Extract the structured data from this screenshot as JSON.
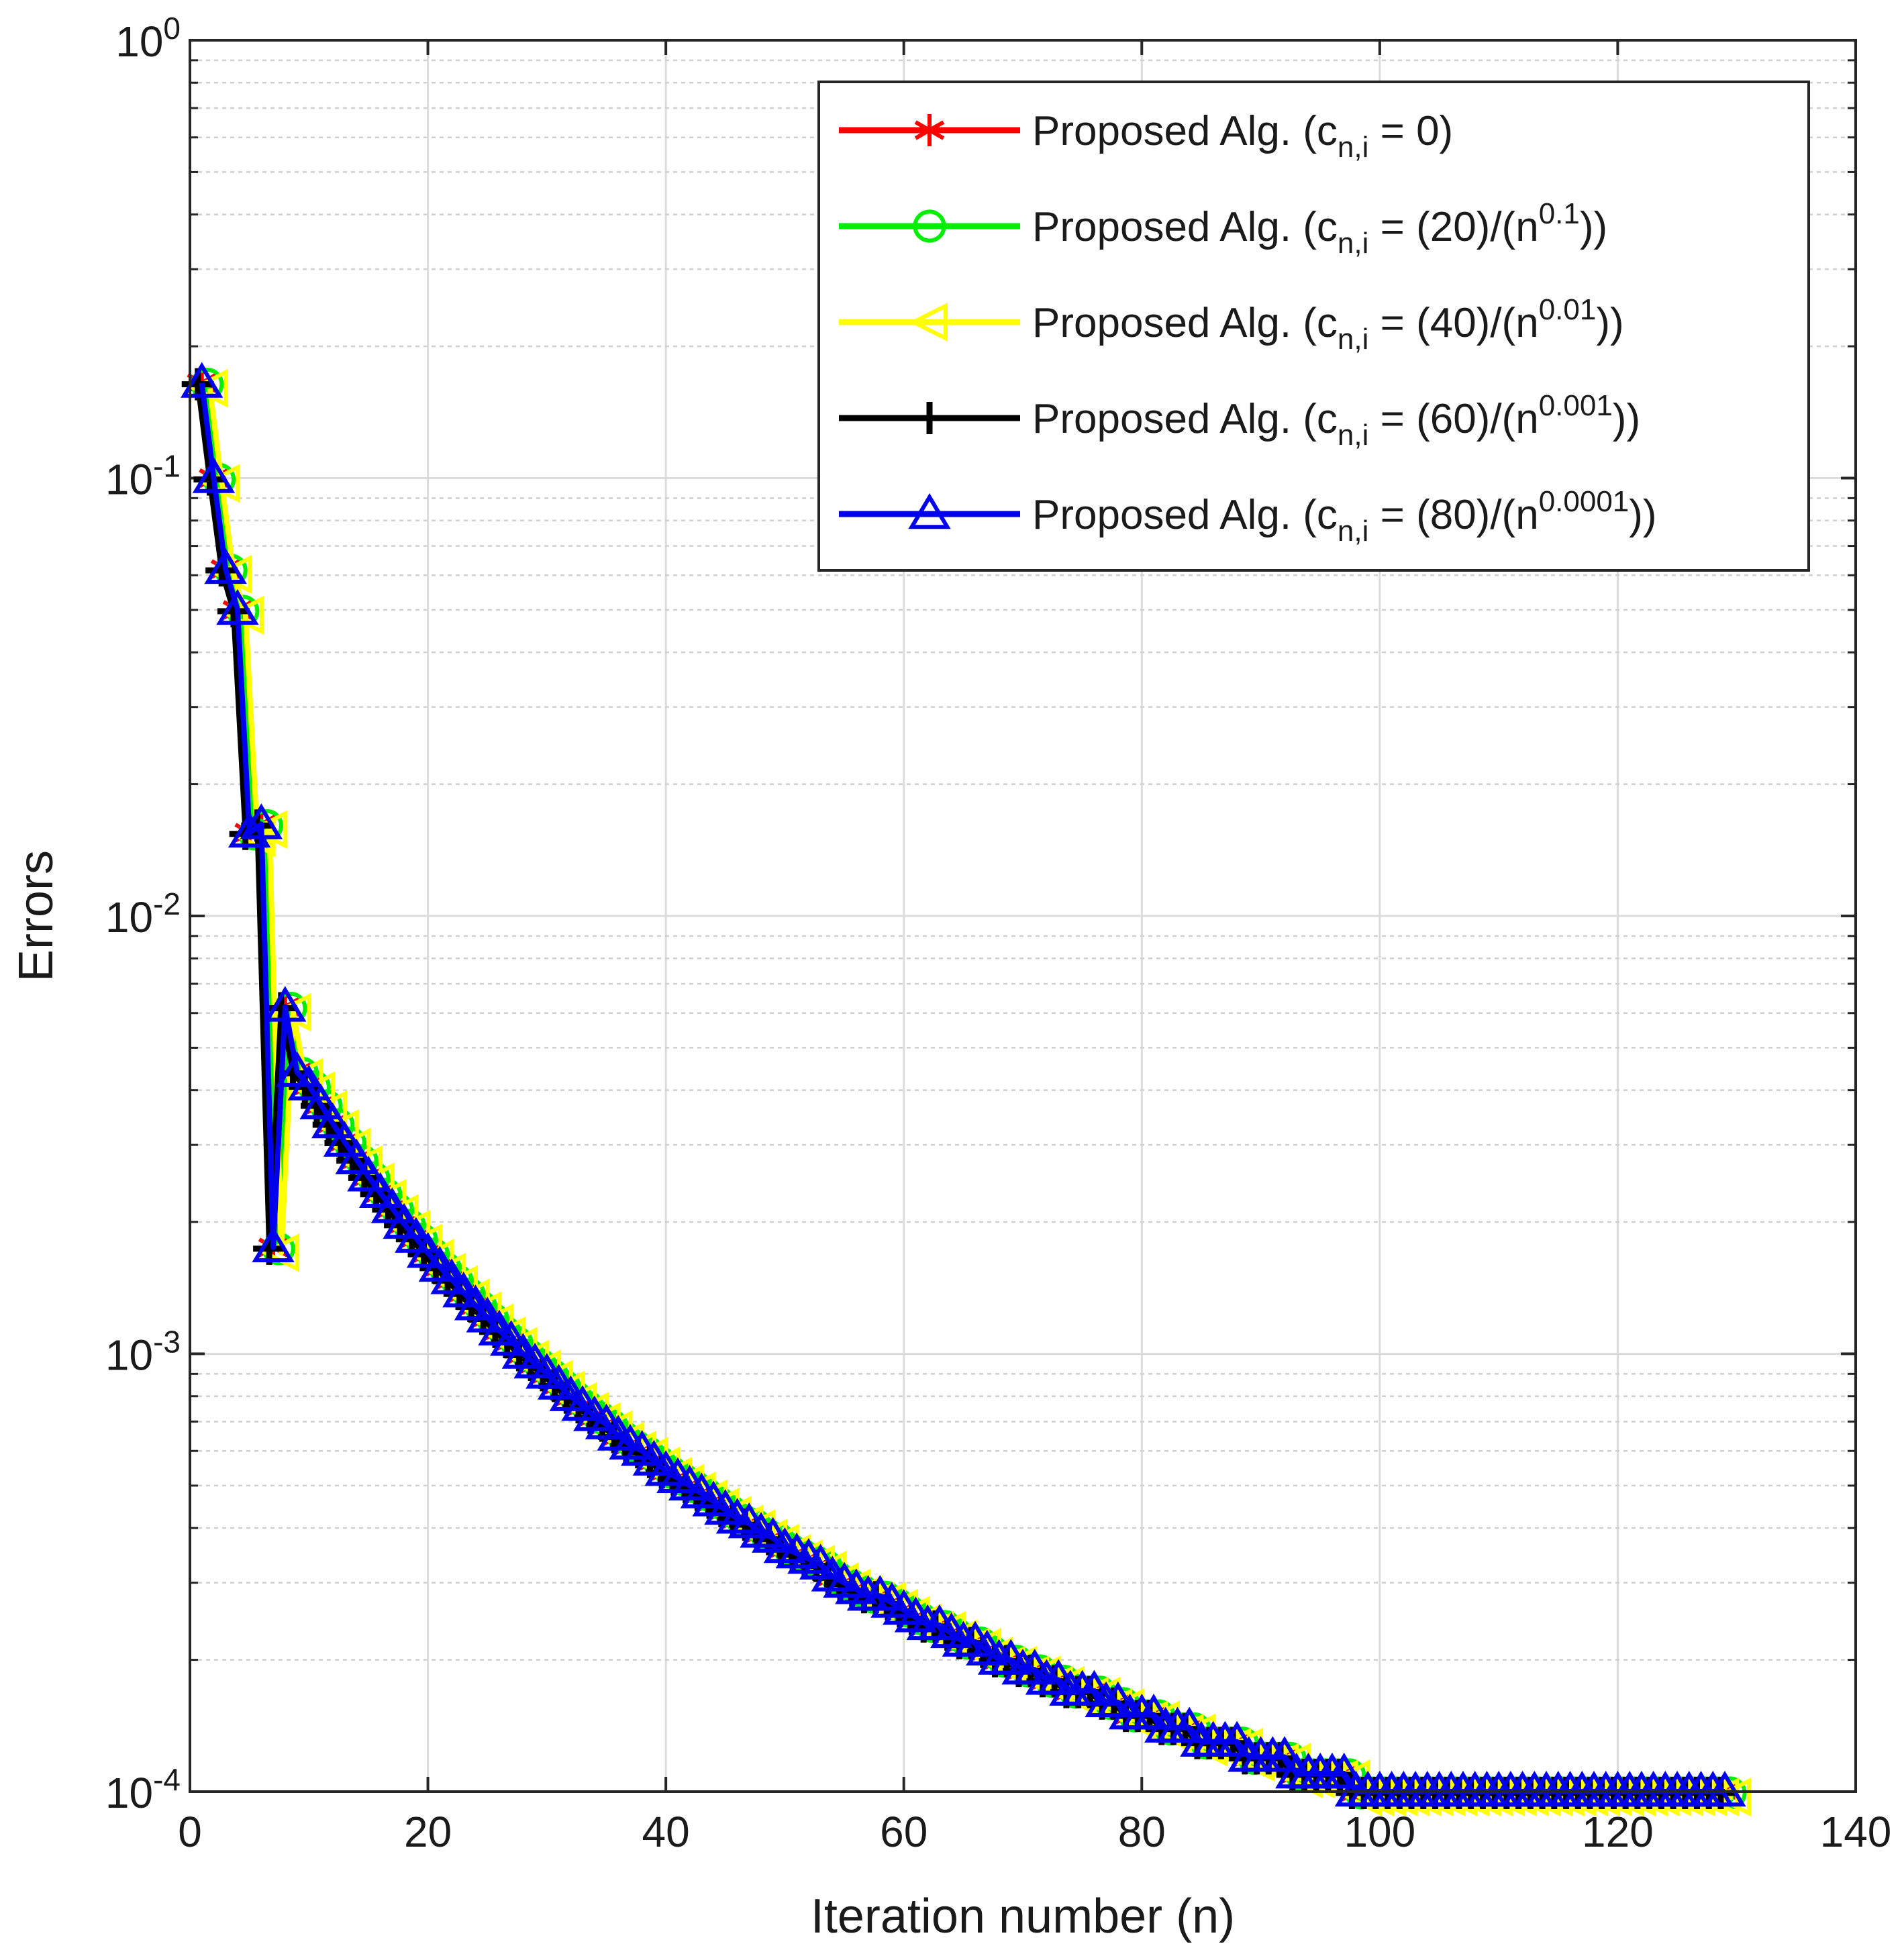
{
  "chart_data": {
    "type": "line",
    "title": "",
    "xlabel": "Iteration number (n)",
    "ylabel": "Errors",
    "xlim": [
      0,
      140
    ],
    "ylim": [
      0.0001,
      1
    ],
    "yscale": "log",
    "grid": true,
    "legend_position": "top-right",
    "x_ticks": [
      0,
      20,
      40,
      60,
      80,
      100,
      120,
      140
    ],
    "y_ticks": [
      {
        "value": 1,
        "base": "10",
        "exp": "0"
      },
      {
        "value": 0.1,
        "base": "10",
        "exp": "-1"
      },
      {
        "value": 0.01,
        "base": "10",
        "exp": "-2"
      },
      {
        "value": 0.001,
        "base": "10",
        "exp": "-3"
      },
      {
        "value": 0.0001,
        "base": "10",
        "exp": "-4"
      }
    ],
    "x": [
      1,
      2,
      3,
      4,
      5,
      6,
      7,
      8,
      9,
      10,
      11,
      12,
      13,
      14,
      15,
      16,
      17,
      18,
      19,
      20,
      21,
      22,
      23,
      24,
      25,
      26,
      27,
      28,
      29,
      30,
      31,
      32,
      33,
      34,
      35,
      36,
      37,
      38,
      39,
      40,
      41,
      42,
      43,
      44,
      45,
      46,
      47,
      48,
      49,
      50,
      51,
      52,
      53,
      54,
      55,
      56,
      57,
      58,
      59,
      60,
      61,
      62,
      63,
      64,
      65,
      66,
      67,
      68,
      69,
      70,
      71,
      72,
      73,
      74,
      75,
      76,
      77,
      78,
      79,
      80,
      81,
      82,
      83,
      84,
      85,
      86,
      87,
      88,
      89,
      90,
      91,
      92,
      93,
      94,
      95,
      96,
      97,
      98,
      99,
      100,
      101,
      102,
      103,
      104,
      105,
      106,
      107,
      108,
      109,
      110,
      111,
      112,
      113,
      114,
      115,
      116,
      117,
      118,
      119,
      120,
      121,
      122,
      123,
      124,
      125,
      126,
      127,
      128,
      129
    ],
    "series": [
      {
        "name": "Proposed Alg. (c_{n,i} = 0)",
        "label_main": "Proposed Alg. (c",
        "label_sub": "n,i",
        "label_rest": " = 0)",
        "label_sup": "",
        "label_end": "",
        "color": "#ff0000",
        "marker": "asterisk",
        "y": [
          0.165,
          0.1,
          0.062,
          0.05,
          0.0155,
          0.0162,
          0.00175,
          0.0062,
          0.0044,
          0.0041,
          0.00371,
          0.00336,
          0.00305,
          0.00278,
          0.00254,
          0.00233,
          0.00215,
          0.00198,
          0.00184,
          0.0017,
          0.00158,
          0.00148,
          0.00138,
          0.00129,
          0.00121,
          0.00113,
          0.00107,
          0.001,
          0.00095,
          0.0009,
          0.00085,
          0.0008,
          0.00076,
          0.00072,
          0.00069,
          0.00065,
          0.00062,
          0.0006,
          0.00057,
          0.00054,
          0.00052,
          0.0005,
          0.00048,
          0.00046,
          0.00044,
          0.00042,
          0.00041,
          0.00039,
          0.00038,
          0.00036,
          0.00035,
          0.00034,
          0.00033,
          0.00031,
          0.0003,
          0.00029,
          0.00028,
          0.00028,
          0.00027,
          0.00026,
          0.00025,
          0.00024,
          0.00024,
          0.00023,
          0.00022,
          0.00022,
          0.00021,
          0.0002,
          0.0002,
          0.00019,
          0.00019,
          0.00018,
          0.00018,
          0.00017,
          0.00017,
          0.00017,
          0.00016,
          0.00016,
          0.00015,
          0.00015,
          0.00015,
          0.00014,
          0.00014,
          0.00014,
          0.00013,
          0.00013,
          0.00013,
          0.00013,
          0.00012,
          0.00012,
          0.00012,
          0.00012,
          0.00011,
          0.00011,
          0.00011,
          0.00011,
          0.00011,
          0.0001,
          0.0001,
          0.0001,
          0.0001,
          0.0001,
          0.0001,
          0.0001,
          0.0001,
          0.0001,
          0.0001,
          0.0001,
          0.0001,
          0.0001,
          0.0001,
          0.0001,
          0.0001,
          0.0001,
          0.0001,
          0.0001,
          0.0001,
          0.0001,
          0.0001,
          0.0001,
          0.0001,
          0.0001,
          0.0001,
          0.0001,
          0.0001,
          0.0001,
          0.0001,
          0.0001,
          0.0001
        ]
      },
      {
        "name": "Proposed Alg. (c_{n,i} = (20)/(n^{0.1}))",
        "label_main": "Proposed  Alg. (c",
        "label_sub": "n,i",
        "label_rest": " = (20)/(n",
        "label_sup": "0.1",
        "label_end": "))",
        "color": "#00ee00",
        "marker": "circle",
        "y": [
          0.165,
          0.1,
          0.062,
          0.05,
          0.0155,
          0.0162,
          0.00175,
          0.0062,
          0.0044,
          0.0041,
          0.00371,
          0.00336,
          0.00305,
          0.00278,
          0.00254,
          0.00233,
          0.00215,
          0.00198,
          0.00184,
          0.0017,
          0.00158,
          0.00148,
          0.00138,
          0.00129,
          0.00121,
          0.00113,
          0.00107,
          0.001,
          0.00095,
          0.0009,
          0.00085,
          0.0008,
          0.00076,
          0.00072,
          0.00069,
          0.00065,
          0.00062,
          0.0006,
          0.00057,
          0.00054,
          0.00052,
          0.0005,
          0.00048,
          0.00046,
          0.00044,
          0.00042,
          0.00041,
          0.00039,
          0.00038,
          0.00036,
          0.00035,
          0.00034,
          0.00033,
          0.00031,
          0.0003,
          0.00029,
          0.00028,
          0.00028,
          0.00027,
          0.00026,
          0.00025,
          0.00024,
          0.00024,
          0.00023,
          0.00022,
          0.00022,
          0.00021,
          0.0002,
          0.0002,
          0.00019,
          0.00019,
          0.00018,
          0.00018,
          0.00017,
          0.00017,
          0.00017,
          0.00016,
          0.00016,
          0.00015,
          0.00015,
          0.00015,
          0.00014,
          0.00014,
          0.00014,
          0.00013,
          0.00013,
          0.00013,
          0.00013,
          0.00012,
          0.00012,
          0.00012,
          0.00012,
          0.00011,
          0.00011,
          0.00011,
          0.00011,
          0.00011,
          0.0001,
          0.0001,
          0.0001,
          0.0001,
          0.0001,
          0.0001,
          0.0001,
          0.0001,
          0.0001,
          0.0001,
          0.0001,
          0.0001,
          0.0001,
          0.0001,
          0.0001,
          0.0001,
          0.0001,
          0.0001,
          0.0001,
          0.0001,
          0.0001,
          0.0001,
          0.0001,
          0.0001,
          0.0001,
          0.0001,
          0.0001,
          0.0001,
          0.0001,
          0.0001,
          0.0001,
          0.0001
        ]
      },
      {
        "name": "Proposed Alg. (c_{n,i} = (40)/(n^{0.01}))",
        "label_main": "Proposed  Alg. (c",
        "label_sub": "n,i",
        "label_rest": " = (40)/(n",
        "label_sup": "0.01",
        "label_end": "))",
        "color": "#ffff00",
        "marker": "triangle-left",
        "y": [
          0.165,
          0.1,
          0.062,
          0.05,
          0.0155,
          0.0162,
          0.00175,
          0.0062,
          0.0044,
          0.0041,
          0.00371,
          0.00336,
          0.00305,
          0.00278,
          0.00254,
          0.00233,
          0.00215,
          0.00198,
          0.00184,
          0.0017,
          0.00158,
          0.00148,
          0.00138,
          0.00129,
          0.00121,
          0.00113,
          0.00107,
          0.001,
          0.00095,
          0.0009,
          0.00085,
          0.0008,
          0.00076,
          0.00072,
          0.00069,
          0.00065,
          0.00062,
          0.0006,
          0.00057,
          0.00054,
          0.00052,
          0.0005,
          0.00048,
          0.00046,
          0.00044,
          0.00042,
          0.00041,
          0.00039,
          0.00038,
          0.00036,
          0.00035,
          0.00034,
          0.00033,
          0.00031,
          0.0003,
          0.00029,
          0.00028,
          0.00028,
          0.00027,
          0.00026,
          0.00025,
          0.00024,
          0.00024,
          0.00023,
          0.00022,
          0.00022,
          0.00021,
          0.0002,
          0.0002,
          0.00019,
          0.00019,
          0.00018,
          0.00018,
          0.00017,
          0.00017,
          0.00017,
          0.00016,
          0.00016,
          0.00015,
          0.00015,
          0.00015,
          0.00014,
          0.00014,
          0.00014,
          0.00013,
          0.00013,
          0.00013,
          0.00013,
          0.00012,
          0.00012,
          0.00012,
          0.00012,
          0.00011,
          0.00011,
          0.00011,
          0.00011,
          0.00011,
          0.0001,
          0.0001,
          0.0001,
          0.0001,
          0.0001,
          0.0001,
          0.0001,
          0.0001,
          0.0001,
          0.0001,
          0.0001,
          0.0001,
          0.0001,
          0.0001,
          0.0001,
          0.0001,
          0.0001,
          0.0001,
          0.0001,
          0.0001,
          0.0001,
          0.0001,
          0.0001,
          0.0001,
          0.0001,
          0.0001,
          0.0001,
          0.0001,
          0.0001,
          0.0001,
          0.0001,
          0.0001
        ]
      },
      {
        "name": "Proposed Alg. (c_{n,i} = (60)/(n^{0.001}))",
        "label_main": "Proposed  Alg. (c",
        "label_sub": "n,i",
        "label_rest": " = (60)/(n",
        "label_sup": "0.001",
        "label_end": "))",
        "color": "#000000",
        "marker": "plus",
        "y": [
          0.165,
          0.1,
          0.062,
          0.05,
          0.0155,
          0.0162,
          0.00175,
          0.0062,
          0.0044,
          0.0041,
          0.00371,
          0.00336,
          0.00305,
          0.00278,
          0.00254,
          0.00233,
          0.00215,
          0.00198,
          0.00184,
          0.0017,
          0.00158,
          0.00148,
          0.00138,
          0.00129,
          0.00121,
          0.00113,
          0.00107,
          0.001,
          0.00095,
          0.0009,
          0.00085,
          0.0008,
          0.00076,
          0.00072,
          0.00069,
          0.00065,
          0.00062,
          0.0006,
          0.00057,
          0.00054,
          0.00052,
          0.0005,
          0.00048,
          0.00046,
          0.00044,
          0.00042,
          0.00041,
          0.00039,
          0.00038,
          0.00036,
          0.00035,
          0.00034,
          0.00033,
          0.00031,
          0.0003,
          0.00029,
          0.00028,
          0.00028,
          0.00027,
          0.00026,
          0.00025,
          0.00024,
          0.00024,
          0.00023,
          0.00022,
          0.00022,
          0.00021,
          0.0002,
          0.0002,
          0.00019,
          0.00019,
          0.00018,
          0.00018,
          0.00017,
          0.00017,
          0.00017,
          0.00016,
          0.00016,
          0.00015,
          0.00015,
          0.00015,
          0.00014,
          0.00014,
          0.00014,
          0.00013,
          0.00013,
          0.00013,
          0.00013,
          0.00012,
          0.00012,
          0.00012,
          0.00012,
          0.00011,
          0.00011,
          0.00011,
          0.00011,
          0.00011,
          0.0001,
          0.0001,
          0.0001,
          0.0001,
          0.0001,
          0.0001,
          0.0001,
          0.0001,
          0.0001,
          0.0001,
          0.0001,
          0.0001,
          0.0001,
          0.0001,
          0.0001,
          0.0001,
          0.0001,
          0.0001,
          0.0001,
          0.0001,
          0.0001,
          0.0001,
          0.0001,
          0.0001,
          0.0001,
          0.0001,
          0.0001,
          0.0001,
          0.0001,
          0.0001,
          0.0001,
          0.0001
        ]
      },
      {
        "name": "Proposed Alg. (c_{n,i} = (80)/(n^{0.0001}))",
        "label_main": "Proposed  Alg. (c",
        "label_sub": "n,i",
        "label_rest": " = (80)/(n",
        "label_sup": "0.0001",
        "label_end": "))",
        "color": "#0000ee",
        "marker": "triangle-up",
        "y": [
          0.165,
          0.1,
          0.062,
          0.05,
          0.0155,
          0.0162,
          0.00175,
          0.0062,
          0.0044,
          0.0041,
          0.00371,
          0.00336,
          0.00305,
          0.00278,
          0.00254,
          0.00233,
          0.00215,
          0.00198,
          0.00184,
          0.0017,
          0.00158,
          0.00148,
          0.00138,
          0.00129,
          0.00121,
          0.00113,
          0.00107,
          0.001,
          0.00095,
          0.0009,
          0.00085,
          0.0008,
          0.00076,
          0.00072,
          0.00069,
          0.00065,
          0.00062,
          0.0006,
          0.00057,
          0.00054,
          0.00052,
          0.0005,
          0.00048,
          0.00046,
          0.00044,
          0.00042,
          0.00041,
          0.00039,
          0.00038,
          0.00036,
          0.00035,
          0.00034,
          0.00033,
          0.00031,
          0.0003,
          0.00029,
          0.00028,
          0.00028,
          0.00027,
          0.00026,
          0.00025,
          0.00024,
          0.00024,
          0.00023,
          0.00022,
          0.00022,
          0.00021,
          0.0002,
          0.0002,
          0.00019,
          0.00019,
          0.00018,
          0.00018,
          0.00017,
          0.00017,
          0.00017,
          0.00016,
          0.00016,
          0.00015,
          0.00015,
          0.00015,
          0.00014,
          0.00014,
          0.00014,
          0.00013,
          0.00013,
          0.00013,
          0.00013,
          0.00012,
          0.00012,
          0.00012,
          0.00012,
          0.00011,
          0.00011,
          0.00011,
          0.00011,
          0.00011,
          0.0001,
          0.0001,
          0.0001,
          0.0001,
          0.0001,
          0.0001,
          0.0001,
          0.0001,
          0.0001,
          0.0001,
          0.0001,
          0.0001,
          0.0001,
          0.0001,
          0.0001,
          0.0001,
          0.0001,
          0.0001,
          0.0001,
          0.0001,
          0.0001,
          0.0001,
          0.0001,
          0.0001,
          0.0001,
          0.0001,
          0.0001,
          0.0001,
          0.0001,
          0.0001,
          0.0001,
          0.0001
        ]
      }
    ]
  }
}
